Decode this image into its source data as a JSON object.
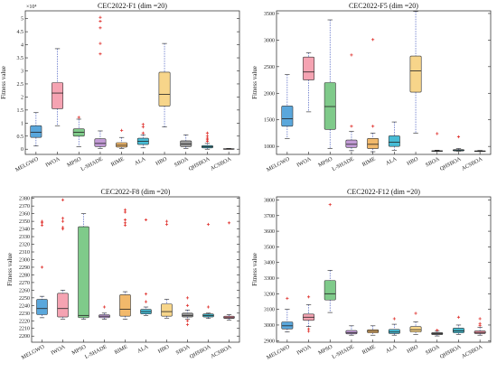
{
  "figure": {
    "background": "#ffffff"
  },
  "chart_data": [
    {
      "type": "box",
      "title": "CEC2022-F1 (dim =20)",
      "ylabel": "Fitness value",
      "exponent_label": "×10⁴",
      "ylim": [
        -0.2,
        5.3
      ],
      "yticks": [
        0,
        0.5,
        1,
        1.5,
        2,
        2.5,
        3,
        3.5,
        4,
        4.5,
        5
      ],
      "ytick_labels": [
        "0",
        "0.5",
        "1",
        "1.5",
        "2",
        "2.5",
        "3",
        "3.5",
        "4",
        "4.5",
        "5"
      ],
      "categories": [
        "MELGWO",
        "IWOA",
        "MPSO",
        "L-SHADE",
        "RIME",
        "ALA",
        "HBO",
        "SBOA",
        "QHSBOA",
        "ACSBOA"
      ],
      "colors": [
        "#5aa7dc",
        "#f5a3b2",
        "#7fca8a",
        "#c29bd6",
        "#f2b96b",
        "#47bcd6",
        "#f7d58a",
        "#9a9a9a",
        "#3fb3c6",
        "#f08ea0"
      ],
      "boxes": [
        {
          "wlo": 0.12,
          "q1": 0.45,
          "med": 0.65,
          "q3": 0.9,
          "whi": 1.4,
          "outliers": []
        },
        {
          "wlo": 0.9,
          "q1": 1.55,
          "med": 2.15,
          "q3": 2.55,
          "whi": 3.85,
          "outliers": []
        },
        {
          "wlo": 0.1,
          "q1": 0.5,
          "med": 0.65,
          "q3": 0.78,
          "whi": 1.15,
          "outliers": [
            1.22
          ]
        },
        {
          "wlo": 0.03,
          "q1": 0.1,
          "med": 0.22,
          "q3": 0.4,
          "whi": 0.7,
          "outliers": [
            3.65,
            4.05,
            4.65,
            4.9,
            5.05
          ]
        },
        {
          "wlo": 0.03,
          "q1": 0.08,
          "med": 0.15,
          "q3": 0.25,
          "whi": 0.45,
          "outliers": [
            0.72
          ]
        },
        {
          "wlo": 0.05,
          "q1": 0.18,
          "med": 0.3,
          "q3": 0.42,
          "whi": 0.55,
          "outliers": [
            0.62,
            0.85,
            0.95
          ]
        },
        {
          "wlo": 0.85,
          "q1": 1.65,
          "med": 2.1,
          "q3": 2.95,
          "whi": 4.05,
          "outliers": []
        },
        {
          "wlo": 0.03,
          "q1": 0.1,
          "med": 0.2,
          "q3": 0.32,
          "whi": 0.55,
          "outliers": []
        },
        {
          "wlo": 0.0,
          "q1": 0.05,
          "med": 0.09,
          "q3": 0.14,
          "whi": 0.22,
          "outliers": [
            0.3,
            0.36,
            0.42,
            0.5,
            0.62
          ]
        },
        {
          "wlo": 0.0,
          "q1": 0.0,
          "med": 0.01,
          "q3": 0.02,
          "whi": 0.03,
          "outliers": []
        }
      ]
    },
    {
      "type": "box",
      "title": "CEC2022-F5 (dim =20)",
      "ylabel": "Fitness value",
      "exponent_label": "",
      "ylim": [
        850,
        3550
      ],
      "yticks": [
        1000,
        1500,
        2000,
        2500,
        3000,
        3500
      ],
      "ytick_labels": [
        "1000",
        "1500",
        "2000",
        "2500",
        "3000",
        "3500"
      ],
      "categories": [
        "MELGWO",
        "IWOA",
        "MPSO",
        "L-SHADE",
        "RIME",
        "ALA",
        "HBO",
        "SBOA",
        "QHSBOA",
        "ACSBOA"
      ],
      "colors": [
        "#5aa7dc",
        "#f5a3b2",
        "#7fca8a",
        "#c29bd6",
        "#f2b96b",
        "#47bcd6",
        "#f7d58a",
        "#9a9a9a",
        "#3fb3c6",
        "#f08ea0"
      ],
      "boxes": [
        {
          "wlo": 1150,
          "q1": 1380,
          "med": 1520,
          "q3": 1760,
          "whi": 2350,
          "outliers": []
        },
        {
          "wlo": 1650,
          "q1": 2250,
          "med": 2400,
          "q3": 2680,
          "whi": 2760,
          "outliers": []
        },
        {
          "wlo": 960,
          "q1": 1320,
          "med": 1750,
          "q3": 2200,
          "whi": 3380,
          "outliers": []
        },
        {
          "wlo": 920,
          "q1": 980,
          "med": 1040,
          "q3": 1120,
          "whi": 1280,
          "outliers": [
            1380,
            2720
          ]
        },
        {
          "wlo": 900,
          "q1": 960,
          "med": 1040,
          "q3": 1150,
          "whi": 1250,
          "outliers": [
            1380,
            3010
          ]
        },
        {
          "wlo": 930,
          "q1": 1000,
          "med": 1080,
          "q3": 1200,
          "whi": 1460,
          "outliers": []
        },
        {
          "wlo": 1250,
          "q1": 2020,
          "med": 2420,
          "q3": 2700,
          "whi": 3540,
          "outliers": []
        },
        {
          "wlo": 905,
          "q1": 910,
          "med": 915,
          "q3": 920,
          "whi": 930,
          "outliers": [
            1240
          ]
        },
        {
          "wlo": 910,
          "q1": 915,
          "med": 925,
          "q3": 940,
          "whi": 960,
          "outliers": [
            1180
          ]
        },
        {
          "wlo": 905,
          "q1": 908,
          "med": 912,
          "q3": 918,
          "whi": 925,
          "outliers": []
        }
      ]
    },
    {
      "type": "box",
      "title": "CEC2022-F8 (dim =20)",
      "ylabel": "Fitness value",
      "exponent_label": "",
      "ylim": [
        2192,
        2382
      ],
      "yticks": [
        2200,
        2210,
        2220,
        2230,
        2240,
        2250,
        2260,
        2270,
        2280,
        2290,
        2300,
        2310,
        2320,
        2330,
        2340,
        2350,
        2360,
        2370,
        2380
      ],
      "ytick_labels": [
        "2200",
        "2210",
        "2220",
        "2230",
        "2240",
        "2250",
        "2260",
        "2270",
        "2280",
        "2290",
        "2300",
        "2310",
        "2320",
        "2330",
        "2340",
        "2350",
        "2360",
        "2370",
        "2380"
      ],
      "categories": [
        "MELGWO",
        "IWOA",
        "MPSO",
        "L-SHADE",
        "RIME",
        "ALA",
        "HBO",
        "SBOA",
        "QHSBOA",
        "ACSBOA"
      ],
      "colors": [
        "#5aa7dc",
        "#f5a3b2",
        "#7fca8a",
        "#c29bd6",
        "#f2b96b",
        "#47bcd6",
        "#f7d58a",
        "#9a9a9a",
        "#3fb3c6",
        "#f08ea0"
      ],
      "boxes": [
        {
          "wlo": 2224,
          "q1": 2228,
          "med": 2236,
          "q3": 2248,
          "whi": 2252,
          "outliers": [
            2290,
            2345,
            2348,
            2350
          ]
        },
        {
          "wlo": 2222,
          "q1": 2225,
          "med": 2236,
          "q3": 2256,
          "whi": 2260,
          "outliers": [
            2340,
            2342,
            2350,
            2354,
            2378
          ]
        },
        {
          "wlo": 2222,
          "q1": 2224,
          "med": 2227,
          "q3": 2343,
          "whi": 2360,
          "outliers": []
        },
        {
          "wlo": 2222,
          "q1": 2224,
          "med": 2226,
          "q3": 2228,
          "whi": 2230,
          "outliers": [
            2238
          ]
        },
        {
          "wlo": 2222,
          "q1": 2226,
          "med": 2235,
          "q3": 2254,
          "whi": 2258,
          "outliers": [
            2345,
            2348,
            2352,
            2362,
            2365
          ]
        },
        {
          "wlo": 2227,
          "q1": 2229,
          "med": 2232,
          "q3": 2235,
          "whi": 2238,
          "outliers": [
            2245,
            2255,
            2352
          ]
        },
        {
          "wlo": 2223,
          "q1": 2226,
          "med": 2232,
          "q3": 2242,
          "whi": 2248,
          "outliers": [
            2346,
            2350
          ]
        },
        {
          "wlo": 2222,
          "q1": 2225,
          "med": 2227,
          "q3": 2230,
          "whi": 2234,
          "outliers": [
            2215,
            2220,
            2240,
            2250
          ]
        },
        {
          "wlo": 2223,
          "q1": 2225,
          "med": 2227,
          "q3": 2229,
          "whi": 2230,
          "outliers": [
            2238,
            2346
          ]
        },
        {
          "wlo": 2221,
          "q1": 2223,
          "med": 2224,
          "q3": 2226,
          "whi": 2228,
          "outliers": [
            2348
          ]
        }
      ]
    },
    {
      "type": "box",
      "title": "CEC2022-F12 (dim =20)",
      "ylabel": "Fitness value",
      "exponent_label": "",
      "ylim": [
        2890,
        3820
      ],
      "yticks": [
        2900,
        3000,
        3100,
        3200,
        3300,
        3400,
        3500,
        3600,
        3700,
        3800
      ],
      "ytick_labels": [
        "2900",
        "3000",
        "3100",
        "3200",
        "3300",
        "3400",
        "3500",
        "3600",
        "3700",
        "3800"
      ],
      "categories": [
        "MELGWO",
        "IWOA",
        "MPSO",
        "L-SHADE",
        "RIME",
        "ALA",
        "HBO",
        "SBOA",
        "QHSBOA",
        "ACSBOA"
      ],
      "colors": [
        "#5aa7dc",
        "#f5a3b2",
        "#7fca8a",
        "#c29bd6",
        "#f2b96b",
        "#47bcd6",
        "#f7d58a",
        "#9a9a9a",
        "#3fb3c6",
        "#f08ea0"
      ],
      "boxes": [
        {
          "wlo": 2955,
          "q1": 2975,
          "med": 2995,
          "q3": 3020,
          "whi": 3100,
          "outliers": [
            3170
          ]
        },
        {
          "wlo": 2990,
          "q1": 3030,
          "med": 3050,
          "q3": 3070,
          "whi": 3130,
          "outliers": [
            2960,
            2975,
            3180
          ]
        },
        {
          "wlo": 3080,
          "q1": 3160,
          "med": 3200,
          "q3": 3285,
          "whi": 3350,
          "outliers": [
            3770
          ]
        },
        {
          "wlo": 2935,
          "q1": 2943,
          "med": 2950,
          "q3": 2965,
          "whi": 2995,
          "outliers": []
        },
        {
          "wlo": 2935,
          "q1": 2950,
          "med": 2960,
          "q3": 2970,
          "whi": 2995,
          "outliers": []
        },
        {
          "wlo": 2935,
          "q1": 2945,
          "med": 2955,
          "q3": 2972,
          "whi": 3005,
          "outliers": [
            3040
          ]
        },
        {
          "wlo": 2940,
          "q1": 2955,
          "med": 2970,
          "q3": 2990,
          "whi": 3020,
          "outliers": [
            3075
          ]
        },
        {
          "wlo": 2930,
          "q1": 2938,
          "med": 2945,
          "q3": 2952,
          "whi": 2960,
          "outliers": [
            2967
          ]
        },
        {
          "wlo": 2940,
          "q1": 2950,
          "med": 2962,
          "q3": 2980,
          "whi": 3000,
          "outliers": [
            3050
          ]
        },
        {
          "wlo": 2935,
          "q1": 2945,
          "med": 2952,
          "q3": 2962,
          "whi": 2985,
          "outliers": [
            2998,
            3010,
            3040
          ]
        }
      ]
    }
  ]
}
